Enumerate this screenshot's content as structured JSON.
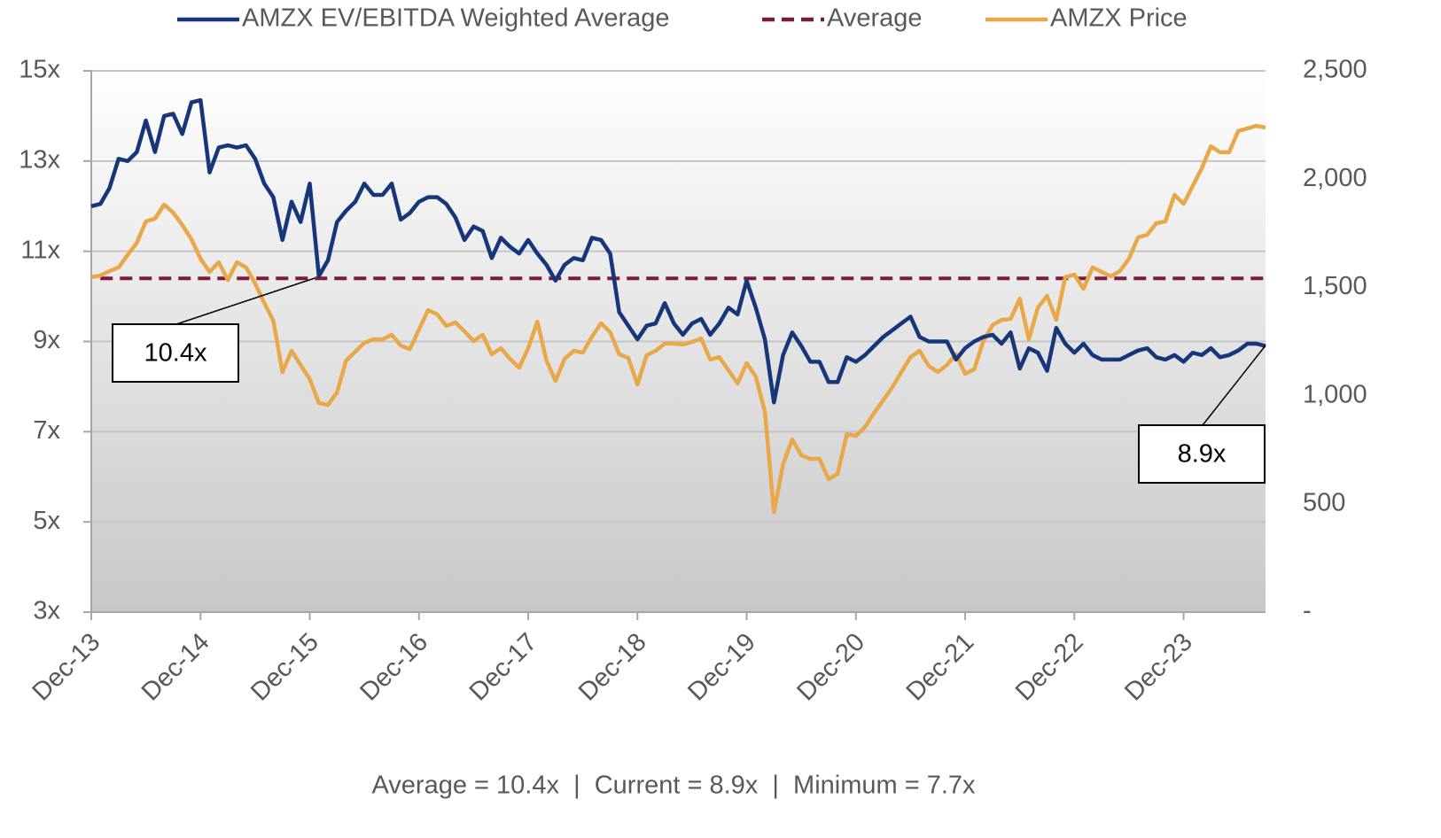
{
  "chart_data": {
    "type": "line",
    "categories": [
      "Dec-13",
      null,
      null,
      null,
      null,
      null,
      null,
      null,
      null,
      null,
      null,
      null,
      "Dec-14",
      null,
      null,
      null,
      null,
      null,
      null,
      null,
      null,
      null,
      null,
      null,
      "Dec-15",
      null,
      null,
      null,
      null,
      null,
      null,
      null,
      null,
      null,
      null,
      null,
      "Dec-16",
      null,
      null,
      null,
      null,
      null,
      null,
      null,
      null,
      null,
      null,
      null,
      "Dec-17",
      null,
      null,
      null,
      null,
      null,
      null,
      null,
      null,
      null,
      null,
      null,
      "Dec-18",
      null,
      null,
      null,
      null,
      null,
      null,
      null,
      null,
      null,
      null,
      null,
      "Dec-19",
      null,
      null,
      null,
      null,
      null,
      null,
      null,
      null,
      null,
      null,
      null,
      "Dec-20",
      null,
      null,
      null,
      null,
      null,
      null,
      null,
      null,
      null,
      null,
      null,
      "Dec-21",
      null,
      null,
      null,
      null,
      null,
      null,
      null,
      null,
      null,
      null,
      null,
      "Dec-22",
      null,
      null,
      null,
      null,
      null,
      null,
      null,
      null,
      null,
      null,
      null,
      "Dec-23",
      null,
      null,
      null,
      null,
      null,
      null,
      null,
      null,
      null
    ],
    "series": [
      {
        "name": "AMZX EV/EBITDA Weighted Average",
        "color": "#17367a",
        "axis": "y",
        "values": [
          12.0,
          12.05,
          12.4,
          13.05,
          13.0,
          13.2,
          13.9,
          13.2,
          14.0,
          14.05,
          13.6,
          14.3,
          14.35,
          12.75,
          13.3,
          13.35,
          13.3,
          13.35,
          13.05,
          12.5,
          12.2,
          11.25,
          12.1,
          11.65,
          12.5,
          10.45,
          10.8,
          11.65,
          11.9,
          12.1,
          12.5,
          12.25,
          12.25,
          12.5,
          11.7,
          11.85,
          12.1,
          12.2,
          12.2,
          12.05,
          11.75,
          11.25,
          11.55,
          11.45,
          10.85,
          11.3,
          11.1,
          10.95,
          11.25,
          10.95,
          10.7,
          10.35,
          10.7,
          10.85,
          10.8,
          11.3,
          11.25,
          10.95,
          9.65,
          9.35,
          9.05,
          9.35,
          9.4,
          9.85,
          9.4,
          9.15,
          9.4,
          9.5,
          9.15,
          9.4,
          9.75,
          9.6,
          10.35,
          9.75,
          9.05,
          7.65,
          8.7,
          9.2,
          8.9,
          8.55,
          8.55,
          8.1,
          8.1,
          8.65,
          8.55,
          8.7,
          8.9,
          9.1,
          9.25,
          9.4,
          9.55,
          9.1,
          9.0,
          9.0,
          9.0,
          8.6,
          8.85,
          9.0,
          9.1,
          9.15,
          8.95,
          9.2,
          8.4,
          8.85,
          8.75,
          8.35,
          9.3,
          8.95,
          8.75,
          8.95,
          8.7,
          8.6,
          8.6,
          8.6,
          8.7,
          8.8,
          8.85,
          8.65,
          8.6,
          8.7,
          8.55,
          8.75,
          8.7,
          8.85,
          8.65,
          8.7,
          8.8,
          8.95,
          8.95,
          8.9
        ]
      },
      {
        "name": "AMZX Price",
        "color": "#e8a84a",
        "axis": "y2",
        "values": [
          1547,
          1555,
          1575,
          1592,
          1650,
          1705,
          1805,
          1817,
          1882,
          1845,
          1788,
          1722,
          1632,
          1571,
          1616,
          1534,
          1616,
          1592,
          1518,
          1428,
          1346,
          1109,
          1207,
          1141,
          1076,
          966,
          957,
          1015,
          1162,
          1203,
          1244,
          1260,
          1260,
          1281,
          1231,
          1215,
          1305,
          1395,
          1375,
          1322,
          1338,
          1297,
          1252,
          1281,
          1191,
          1219,
          1170,
          1129,
          1219,
          1342,
          1162,
          1068,
          1170,
          1207,
          1199,
          1272,
          1334,
          1293,
          1191,
          1174,
          1051,
          1186,
          1207,
          1240,
          1240,
          1236,
          1248,
          1264,
          1166,
          1178,
          1117,
          1056,
          1150,
          1088,
          925,
          462,
          683,
          798,
          724,
          708,
          708,
          614,
          638,
          822,
          814,
          855,
          920,
          978,
          1039,
          1109,
          1178,
          1207,
          1137,
          1109,
          1141,
          1191,
          1101,
          1121,
          1252,
          1326,
          1350,
          1354,
          1448,
          1260,
          1407,
          1461,
          1350,
          1547,
          1559,
          1493,
          1592,
          1571,
          1551,
          1575,
          1632,
          1731,
          1743,
          1796,
          1805,
          1927,
          1886,
          1968,
          2050,
          2152,
          2124,
          2124,
          2222,
          2234,
          2246,
          2238
        ]
      }
    ],
    "reference": {
      "name": "Average",
      "value": 10.4,
      "color": "#7b1a3c"
    },
    "ylim": [
      3,
      15
    ],
    "yticks": [
      {
        "value": 3,
        "label": "3x"
      },
      {
        "value": 5,
        "label": "5x"
      },
      {
        "value": 7,
        "label": "7x"
      },
      {
        "value": 9,
        "label": "9x"
      },
      {
        "value": 11,
        "label": "11x"
      },
      {
        "value": 13,
        "label": "13x"
      },
      {
        "value": 15,
        "label": "15x"
      }
    ],
    "y2lim": [
      0,
      2500
    ],
    "y2ticks": [
      {
        "value": 0,
        "label": "-"
      },
      500,
      {
        "value": 1000,
        "label": "1,000"
      },
      {
        "value": 1500,
        "label": "1,500"
      },
      {
        "value": 2000,
        "label": "2,000"
      },
      {
        "value": 2500,
        "label": "2,500"
      }
    ],
    "grid": true,
    "legend": "top",
    "annotations": [
      "10.4x",
      "8.9x"
    ],
    "footnote": "Average = 10.4x  |  Current = 8.9x  |  Minimum = 7.7x"
  }
}
